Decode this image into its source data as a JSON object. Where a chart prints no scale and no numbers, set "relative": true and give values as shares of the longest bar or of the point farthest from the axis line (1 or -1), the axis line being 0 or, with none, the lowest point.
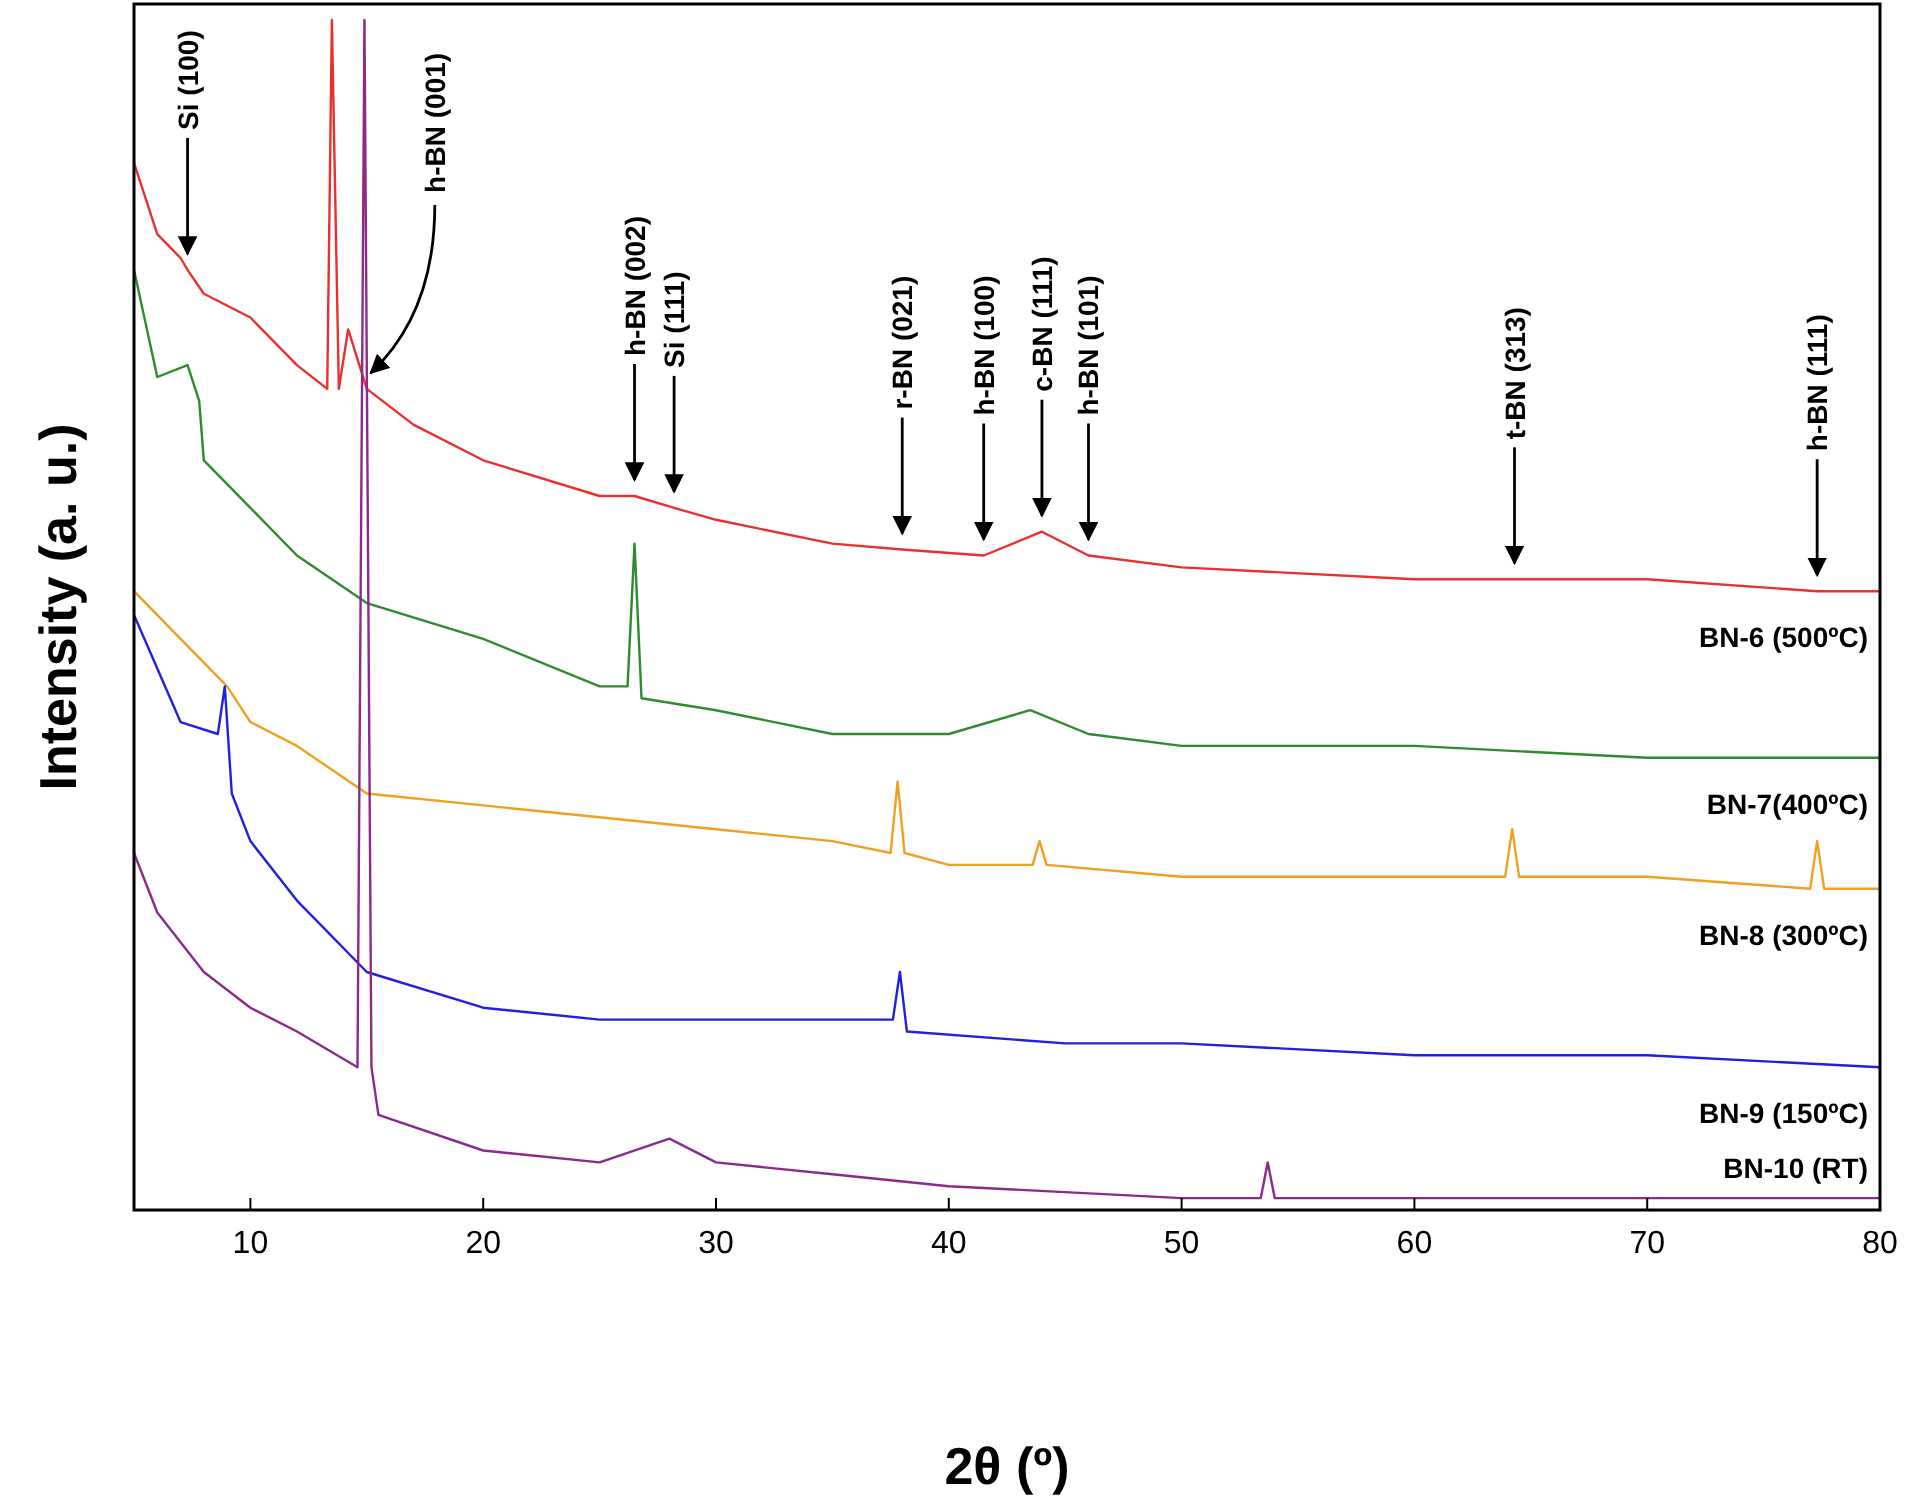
{
  "chart_data": {
    "type": "line",
    "relative": true,
    "xlabel": "2θ (º)",
    "ylabel": "Intensity (a. u.)",
    "xlim": [
      5,
      80
    ],
    "xticks": [
      10,
      20,
      30,
      40,
      50,
      60,
      70,
      80
    ],
    "legend": false,
    "marker": "none",
    "line_style": "solid",
    "series": [
      {
        "name": "BN-6 (500ºC)",
        "color": "#e8312f",
        "x": [
          5,
          6,
          7,
          7.3,
          8,
          10,
          12,
          13.3,
          13.5,
          13.8,
          14.2,
          15,
          17,
          20,
          25,
          26.5,
          28.2,
          30,
          35,
          38,
          41.5,
          44,
          46,
          50,
          60,
          64.3,
          70,
          77.3,
          80
        ],
        "values": [
          0.88,
          0.82,
          0.8,
          0.79,
          0.77,
          0.75,
          0.71,
          0.69,
          1,
          0.69,
          0.74,
          0.69,
          0.66,
          0.63,
          0.6,
          0.6,
          0.59,
          0.58,
          0.56,
          0.555,
          0.55,
          0.57,
          0.55,
          0.54,
          0.53,
          0.53,
          0.53,
          0.52,
          0.52
        ]
      },
      {
        "name": "BN-7(400ºC)",
        "color": "#2e8b2e",
        "x": [
          5,
          6,
          7.3,
          7.8,
          8,
          10,
          12,
          15,
          20,
          25,
          26.2,
          26.5,
          26.8,
          30,
          35,
          40,
          43.5,
          46,
          50,
          60,
          70,
          80
        ],
        "values": [
          0.79,
          0.7,
          0.71,
          0.68,
          0.63,
          0.59,
          0.55,
          0.51,
          0.48,
          0.44,
          0.44,
          0.56,
          0.43,
          0.42,
          0.4,
          0.4,
          0.42,
          0.4,
          0.39,
          0.39,
          0.38,
          0.38
        ]
      },
      {
        "name": "BN-8 (300ºC)",
        "color": "#f0a020",
        "x": [
          5,
          7,
          9,
          10,
          12,
          15,
          20,
          25,
          30,
          35,
          37.5,
          37.8,
          38.1,
          40,
          43.6,
          43.9,
          44.2,
          50,
          60,
          63.9,
          64.2,
          64.5,
          70,
          77,
          77.3,
          77.6,
          80
        ],
        "values": [
          0.52,
          0.48,
          0.44,
          0.41,
          0.39,
          0.35,
          0.34,
          0.33,
          0.32,
          0.31,
          0.3,
          0.36,
          0.3,
          0.29,
          0.29,
          0.31,
          0.29,
          0.28,
          0.28,
          0.28,
          0.32,
          0.28,
          0.28,
          0.27,
          0.31,
          0.27,
          0.27
        ]
      },
      {
        "name": "BN-9 (150ºC)",
        "color": "#2020e0",
        "x": [
          5,
          7,
          8.6,
          8.9,
          9.2,
          10,
          12,
          15,
          20,
          25,
          30,
          35,
          37.6,
          37.9,
          38.2,
          45,
          50,
          60,
          70,
          80
        ],
        "values": [
          0.5,
          0.41,
          0.4,
          0.44,
          0.35,
          0.31,
          0.26,
          0.2,
          0.17,
          0.16,
          0.16,
          0.16,
          0.16,
          0.2,
          0.15,
          0.14,
          0.14,
          0.13,
          0.13,
          0.12
        ]
      },
      {
        "name": "BN-10 (RT)",
        "color": "#8b2a8b",
        "x": [
          5,
          6,
          8,
          10,
          12,
          14.6,
          14.9,
          15.2,
          15.5,
          20,
          25,
          28,
          30,
          35,
          40,
          50,
          53.4,
          53.7,
          54,
          60,
          80
        ],
        "values": [
          0.3,
          0.25,
          0.2,
          0.17,
          0.15,
          0.12,
          1,
          0.12,
          0.08,
          0.05,
          0.04,
          0.06,
          0.04,
          0.03,
          0.02,
          0.01,
          0.01,
          0.04,
          0.01,
          0.01,
          0.01
        ]
      }
    ],
    "annotations": [
      {
        "text": "Si (100)",
        "x": 7.3,
        "y": 0.79
      },
      {
        "text": "h-BN (001)",
        "x": 15,
        "y": 0.69
      },
      {
        "text": "h-BN (002)",
        "x": 26.5,
        "y": 0.6
      },
      {
        "text": "Si (111)",
        "x": 28.2,
        "y": 0.59
      },
      {
        "text": "r-BN (021)",
        "x": 38,
        "y": 0.555
      },
      {
        "text": "h-BN (100)",
        "x": 41.5,
        "y": 0.55
      },
      {
        "text": "c-BN (111)",
        "x": 44,
        "y": 0.57
      },
      {
        "text": "h-BN (101)",
        "x": 46,
        "y": 0.55
      },
      {
        "text": "t-BN (313)",
        "x": 64.3,
        "y": 0.53
      },
      {
        "text": "h-BN (111)",
        "x": 77.3,
        "y": 0.52
      }
    ]
  }
}
